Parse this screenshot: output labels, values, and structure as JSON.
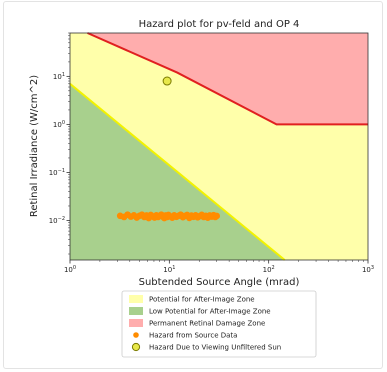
{
  "chart_data": {
    "type": "scatter",
    "title": "Hazard plot for pv-feld and OP 4",
    "xlabel": "Subtended Source Angle (mrad)",
    "ylabel": "Retinal Irradiance (W/cm^2)",
    "x_scale": "log",
    "y_scale": "log",
    "xlim": [
      1,
      1000
    ],
    "ylim": [
      0.0015,
      80
    ],
    "x_ticks": [
      {
        "value": 1,
        "base": "10",
        "exp": "0"
      },
      {
        "value": 10,
        "base": "10",
        "exp": "1"
      },
      {
        "value": 100,
        "base": "10",
        "exp": "2"
      },
      {
        "value": 1000,
        "base": "10",
        "exp": "3"
      }
    ],
    "y_ticks": [
      {
        "value": 0.01,
        "base": "10",
        "exp": "−2"
      },
      {
        "value": 0.1,
        "base": "10",
        "exp": "−1"
      },
      {
        "value": 1,
        "base": "10",
        "exp": "0"
      },
      {
        "value": 10,
        "base": "10",
        "exp": "1"
      }
    ],
    "zones": {
      "permanent_boundary": [
        [
          1.5,
          80
        ],
        [
          12,
          12
        ],
        [
          120,
          1
        ],
        [
          1000,
          1
        ]
      ],
      "low_potential_boundary": [
        [
          1,
          7
        ],
        [
          145,
          0.0015
        ]
      ]
    },
    "series": [
      {
        "name": "Hazard from Source Data",
        "marker": "circle",
        "color": "#ff8c00",
        "points": [
          [
            3.2,
            0.0125
          ],
          [
            3.5,
            0.0118
          ],
          [
            3.8,
            0.0132
          ],
          [
            4.1,
            0.012
          ],
          [
            4.4,
            0.0128
          ],
          [
            4.7,
            0.0115
          ],
          [
            5.0,
            0.0125
          ],
          [
            5.3,
            0.0132
          ],
          [
            5.6,
            0.0118
          ],
          [
            5.9,
            0.0127
          ],
          [
            6.2,
            0.0112
          ],
          [
            6.5,
            0.013
          ],
          [
            6.8,
            0.0121
          ],
          [
            7.1,
            0.0115
          ],
          [
            7.4,
            0.0128
          ],
          [
            7.7,
            0.0118
          ],
          [
            8.0,
            0.0125
          ],
          [
            8.3,
            0.0132
          ],
          [
            8.6,
            0.012
          ],
          [
            8.9,
            0.0112
          ],
          [
            9.2,
            0.0127
          ],
          [
            9.5,
            0.0118
          ],
          [
            9.8,
            0.013
          ],
          [
            10.2,
            0.0121
          ],
          [
            10.7,
            0.0114
          ],
          [
            11.2,
            0.0128
          ],
          [
            11.8,
            0.0119
          ],
          [
            12.4,
            0.0125
          ],
          [
            13.0,
            0.0132
          ],
          [
            13.7,
            0.0117
          ],
          [
            14.4,
            0.0124
          ],
          [
            15.1,
            0.013
          ],
          [
            15.9,
            0.0113
          ],
          [
            16.7,
            0.0126
          ],
          [
            17.5,
            0.0119
          ],
          [
            18.4,
            0.0128
          ],
          [
            19.3,
            0.0116
          ],
          [
            20.2,
            0.0123
          ],
          [
            21.2,
            0.0131
          ],
          [
            22.2,
            0.0118
          ],
          [
            23.3,
            0.0125
          ],
          [
            24.4,
            0.0114
          ],
          [
            25.5,
            0.0127
          ],
          [
            26.7,
            0.012
          ],
          [
            27.9,
            0.0129
          ],
          [
            29.0,
            0.0118
          ],
          [
            30.0,
            0.0124
          ]
        ]
      },
      {
        "name": "Hazard Due to Viewing Unfiltered Sun",
        "marker": "circle",
        "color": "#e8e84a",
        "points": [
          [
            9.5,
            8.0
          ]
        ]
      }
    ],
    "legend": {
      "placement": "bottom",
      "entries": [
        {
          "label": "Potential for After-Image Zone",
          "kind": "patch",
          "color": "#ffffaa"
        },
        {
          "label": "Low Potential for After-Image Zone",
          "kind": "patch",
          "color": "#a8d08d"
        },
        {
          "label": "Permanent Retinal Damage Zone",
          "kind": "patch",
          "color": "#ffadad"
        },
        {
          "label": "Hazard from Source Data",
          "kind": "marker",
          "color": "#ff8c00"
        },
        {
          "label": "Hazard Due to Viewing Unfiltered Sun",
          "kind": "marker",
          "color": "#e8e84a"
        }
      ]
    },
    "colors": {
      "after_image_zone": "#ffffaa",
      "low_potential_zone": "#a8d08d",
      "permanent_zone": "#ffadad",
      "permanent_line": "#e02020",
      "low_potential_line": "#f2f200",
      "source_marker": "#ff8c00",
      "sun_marker": "#e8e84a",
      "sun_marker_edge": "#7a7a00"
    }
  }
}
